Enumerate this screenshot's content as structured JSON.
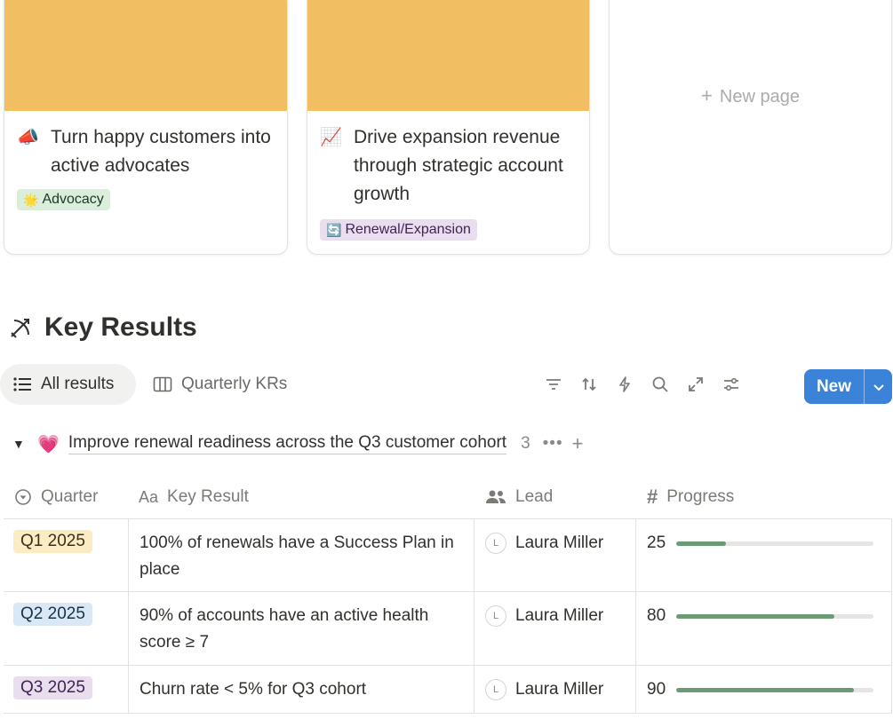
{
  "cards": [
    {
      "emoji": "📣",
      "title": "Turn happy customers into active advocates",
      "tag": {
        "icon": "🌟",
        "label": "Advocacy",
        "color": "#dbeddb"
      }
    },
    {
      "emoji": "📈",
      "title": "Drive expansion revenue through strategic account growth",
      "tag": {
        "icon": "🔄",
        "label": "Renewal/Expansion",
        "color": "#e8deee"
      }
    }
  ],
  "new_page_label": "New page",
  "section": {
    "icon": "bow-and-arrow-icon",
    "title": "Key Results"
  },
  "views": [
    {
      "label": "All results",
      "icon": "list-icon",
      "active": true
    },
    {
      "label": "Quarterly KRs",
      "icon": "board-icon",
      "active": false
    }
  ],
  "toolbar": {
    "icons": [
      "filter-icon",
      "sort-icon",
      "automation-icon",
      "search-icon",
      "expand-icon",
      "settings-icon"
    ],
    "new_label": "New",
    "accent": "#3b82d9"
  },
  "group": {
    "emoji": "💗",
    "title": "Improve renewal readiness across the Q3 customer cohort",
    "count": "3"
  },
  "columns": [
    {
      "label": "Quarter",
      "icon": "select-icon"
    },
    {
      "label": "Key Result",
      "icon": "text-icon"
    },
    {
      "label": "Lead",
      "icon": "people-icon"
    },
    {
      "label": "Progress",
      "icon": "number-icon"
    }
  ],
  "rows": [
    {
      "quarter": "Q1 2025",
      "quarter_color": "#fbecc4",
      "key_result": "100% of renewals have a Success Plan in place",
      "lead_initial": "L",
      "lead": "Laura Miller",
      "progress": "25",
      "progress_fraction": 0.25
    },
    {
      "quarter": "Q2 2025",
      "quarter_color": "#d9e8f4",
      "key_result": "90% of accounts have an active health score ≥ 7",
      "lead_initial": "L",
      "lead": "Laura Miller",
      "progress": "80",
      "progress_fraction": 0.8
    },
    {
      "quarter": "Q3 2025",
      "quarter_color": "#e8deee",
      "key_result": "Churn rate < 5% for Q3 cohort",
      "lead_initial": "L",
      "lead": "Laura Miller",
      "progress": "90",
      "progress_fraction": 0.9
    }
  ]
}
